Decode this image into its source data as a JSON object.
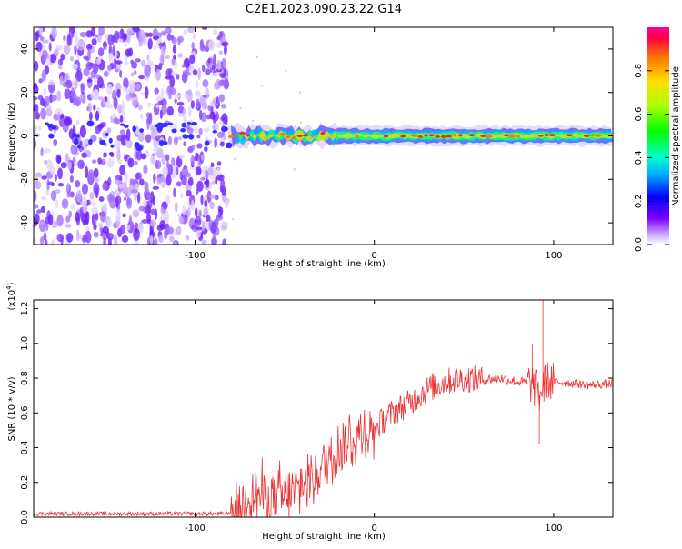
{
  "title": "C2E1.2023.090.23.22.G14",
  "chart_data": [
    {
      "type": "heatmap",
      "title": "C2E1.2023.090.23.22.G14",
      "xlabel": "Height of straight line (km)",
      "ylabel": "Frequency (Hz)",
      "xlim": [
        -190,
        133
      ],
      "ylim": [
        -50,
        50
      ],
      "xticks": [
        -100,
        0,
        100
      ],
      "yticks": [
        -40,
        -20,
        0,
        20,
        40
      ],
      "colorbar": {
        "label": "Normalized spectral amplitude",
        "range": [
          0,
          1
        ],
        "ticks": [
          "0.0",
          "0.2",
          "0.4",
          "0.6",
          "0.8"
        ],
        "colormap": "rainbow"
      },
      "regions": [
        {
          "name": "noise",
          "x": [
            -190,
            -82
          ],
          "freq_spread": [
            -50,
            50
          ]
        },
        {
          "name": "signal",
          "x": [
            -82,
            133
          ],
          "freq_center": 0,
          "freq_halfwidth": 3
        }
      ]
    },
    {
      "type": "line",
      "xlabel": "Height of straight line (km)",
      "ylabel": "SNR (10 * v/v)",
      "y_multiplier": "(x10^4)",
      "xlim": [
        -190,
        133
      ],
      "ylim": [
        0,
        1.25
      ],
      "xticks": [
        -100,
        0,
        100
      ],
      "yticks": [
        "0.0",
        "0.2",
        "0.4",
        "0.6",
        "0.8",
        "1.0",
        "1.2"
      ],
      "color": "#ee3333",
      "series": [
        {
          "x": [
            -190,
            -150,
            -110,
            -85,
            -78,
            -75,
            -70,
            -60,
            -50,
            -40,
            -30,
            -20,
            -10,
            -5,
            0,
            5,
            10,
            20,
            30,
            40,
            50,
            60,
            70,
            80,
            88,
            92,
            94,
            96,
            100,
            110,
            120,
            133
          ],
          "y": [
            0.02,
            0.02,
            0.02,
            0.02,
            0.03,
            0.05,
            0.15,
            0.12,
            0.1,
            0.18,
            0.28,
            0.4,
            0.45,
            0.5,
            0.5,
            0.56,
            0.6,
            0.66,
            0.74,
            0.78,
            0.8,
            0.79,
            0.8,
            0.78,
            0.77,
            0.7,
            0.75,
            0.78,
            0.78,
            0.77,
            0.76,
            0.77
          ],
          "spikes": [
            {
              "x": 88,
              "y": 1.0
            },
            {
              "x": 94,
              "y": 1.26
            },
            {
              "x": 92,
              "y": 0.42
            },
            {
              "x": 40,
              "y": 0.96
            }
          ]
        }
      ]
    }
  ]
}
